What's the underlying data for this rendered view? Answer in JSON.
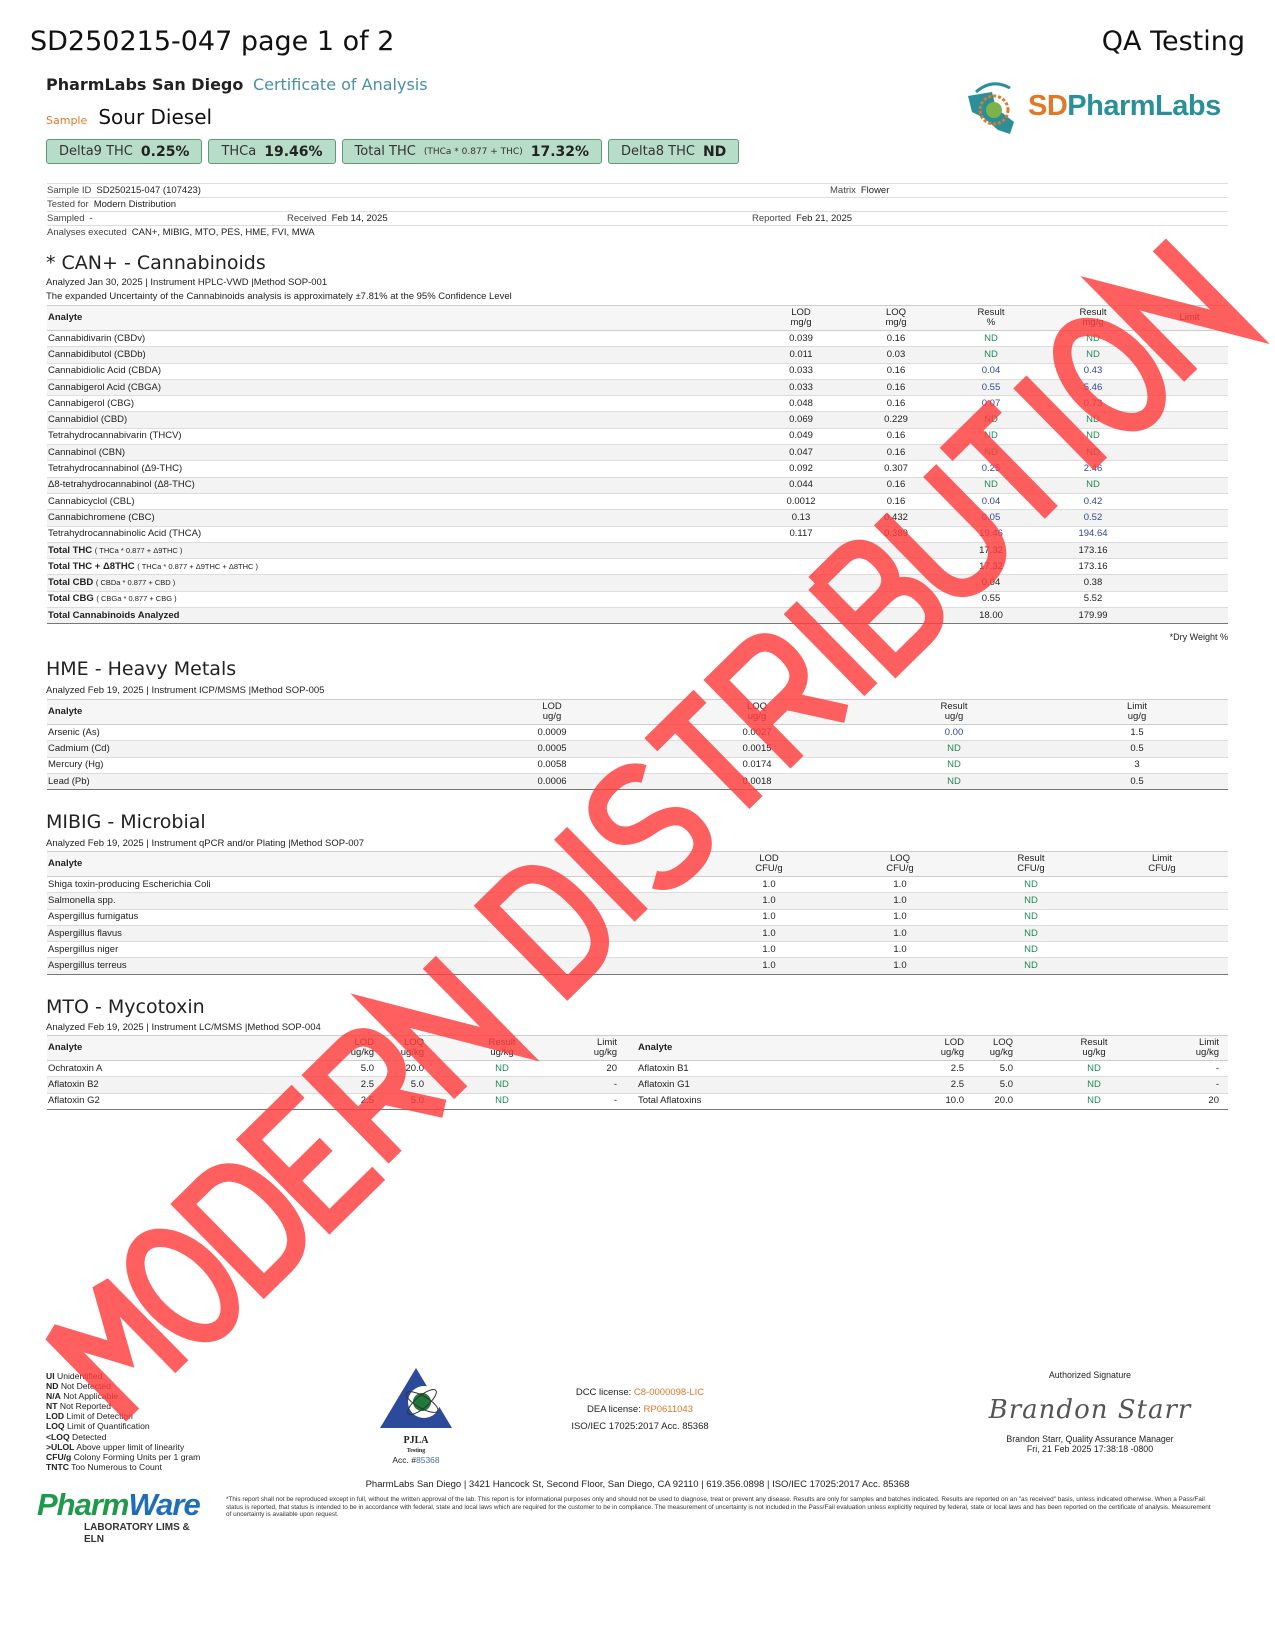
{
  "header": {
    "title": "SD250215-047 page 1 of 2",
    "right": "QA Testing"
  },
  "lab": {
    "name": "PharmLabs San Diego",
    "doc_type": "Certificate of Analysis",
    "logo_text_a": "SD",
    "logo_text_b": "PharmLabs",
    "logo_arc": "PharmLabs"
  },
  "sample": {
    "label": "Sample",
    "name": "Sour Diesel"
  },
  "badges": [
    {
      "label": "Delta9 THC",
      "formula": "",
      "value": "0.25%"
    },
    {
      "label": "THCa",
      "formula": "",
      "value": "19.46%"
    },
    {
      "label": "Total THC",
      "formula": "(THCa * 0.877 + THC)",
      "value": "17.32%"
    },
    {
      "label": "Delta8 THC",
      "formula": "",
      "value": "ND"
    }
  ],
  "info": {
    "sample_id_label": "Sample ID",
    "sample_id": "SD250215-047 (107423)",
    "matrix_label": "Matrix",
    "matrix": "Flower",
    "tested_for_label": "Tested for",
    "tested_for": "Modern Distribution",
    "sampled_label": "Sampled",
    "sampled": "-",
    "received_label": "Received",
    "received": "Feb 14, 2025",
    "reported_label": "Reported",
    "reported": "Feb 21, 2025",
    "analyses_label": "Analyses executed",
    "analyses": "CAN+, MIBIG, MTO, PES, HME, FVI, MWA"
  },
  "cannabinoids": {
    "title": "* CAN+ - Cannabinoids",
    "meta": "Analyzed Jan 30, 2025  |  Instrument HPLC-VWD  |Method SOP-001",
    "note": "The expanded Uncertainty of the Cannabinoids analysis is approximately ±7.81% at the 95% Confidence Level",
    "headers": [
      "Analyte",
      "LOD\nmg/g",
      "LOQ\nmg/g",
      "Result\n%",
      "Result\nmg/g",
      "Limit"
    ],
    "rows": [
      [
        "Cannabidivarin (CBDv)",
        "0.039",
        "0.16",
        "ND",
        "ND",
        ""
      ],
      [
        "Cannabidibutol (CBDb)",
        "0.011",
        "0.03",
        "ND",
        "ND",
        ""
      ],
      [
        "Cannabidiolic Acid (CBDA)",
        "0.033",
        "0.16",
        "0.04",
        "0.43",
        ""
      ],
      [
        "Cannabigerol Acid (CBGA)",
        "0.033",
        "0.16",
        "0.55",
        "5.46",
        ""
      ],
      [
        "Cannabigerol (CBG)",
        "0.048",
        "0.16",
        "0.07",
        "0.73",
        ""
      ],
      [
        "Cannabidiol (CBD)",
        "0.069",
        "0.229",
        "ND",
        "ND",
        ""
      ],
      [
        "Tetrahydrocannabivarin (THCV)",
        "0.049",
        "0.16",
        "ND",
        "ND",
        ""
      ],
      [
        "Cannabinol (CBN)",
        "0.047",
        "0.16",
        "ND",
        "ND",
        ""
      ],
      [
        "Tetrahydrocannabinol (Δ9-THC)",
        "0.092",
        "0.307",
        "0.25",
        "2.46",
        ""
      ],
      [
        "Δ8-tetrahydrocannabinol (Δ8-THC)",
        "0.044",
        "0.16",
        "ND",
        "ND",
        ""
      ],
      [
        "Cannabicyclol (CBL)",
        "0.0012",
        "0.16",
        "0.04",
        "0.42",
        ""
      ],
      [
        "Cannabichromene (CBC)",
        "0.13",
        "0.432",
        "0.05",
        "0.52",
        ""
      ],
      [
        "Tetrahydrocannabinolic Acid (THCA)",
        "0.117",
        "0.389",
        "19.46",
        "194.64",
        ""
      ]
    ],
    "totals": [
      {
        "name": "Total THC",
        "formula": "( THCa * 0.877 + Δ9THC )",
        "result_pct": "17.32",
        "result_mg": "173.16"
      },
      {
        "name": "Total THC + Δ8THC",
        "formula": "( THCa * 0.877 + Δ9THC + Δ8THC )",
        "result_pct": "17.32",
        "result_mg": "173.16"
      },
      {
        "name": "Total CBD",
        "formula": "( CBDa * 0.877 + CBD )",
        "result_pct": "0.04",
        "result_mg": "0.38"
      },
      {
        "name": "Total CBG",
        "formula": "( CBGa * 0.877 + CBG )",
        "result_pct": "0.55",
        "result_mg": "5.52"
      },
      {
        "name": "Total Cannabinoids Analyzed",
        "formula": "",
        "result_pct": "18.00",
        "result_mg": "179.99"
      }
    ],
    "footnote": "*Dry Weight %"
  },
  "metals": {
    "title": "HME - Heavy Metals",
    "meta": "Analyzed Feb 19, 2025  |  Instrument ICP/MSMS  |Method SOP-005",
    "headers": [
      "Analyte",
      "LOD\nug/g",
      "LOQ\nug/g",
      "Result\nug/g",
      "Limit\nug/g"
    ],
    "rows": [
      [
        "Arsenic (As)",
        "0.0009",
        "0.0027",
        "0.00",
        "1.5"
      ],
      [
        "Cadmium (Cd)",
        "0.0005",
        "0.0015",
        "ND",
        "0.5"
      ],
      [
        "Mercury (Hg)",
        "0.0058",
        "0.0174",
        "ND",
        "3"
      ],
      [
        "Lead (Pb)",
        "0.0006",
        "0.0018",
        "ND",
        "0.5"
      ]
    ]
  },
  "microbial": {
    "title": "MIBIG - Microbial",
    "meta": "Analyzed Feb 19, 2025  |  Instrument qPCR and/or Plating  |Method SOP-007",
    "headers": [
      "Analyte",
      "LOD\nCFU/g",
      "LOQ\nCFU/g",
      "Result\nCFU/g",
      "Limit\nCFU/g"
    ],
    "rows": [
      [
        "Shiga toxin-producing Escherichia Coli",
        "1.0",
        "1.0",
        "ND",
        ""
      ],
      [
        "Salmonella spp.",
        "1.0",
        "1.0",
        "ND",
        ""
      ],
      [
        "Aspergillus fumigatus",
        "1.0",
        "1.0",
        "ND",
        ""
      ],
      [
        "Aspergillus flavus",
        "1.0",
        "1.0",
        "ND",
        ""
      ],
      [
        "Aspergillus niger",
        "1.0",
        "1.0",
        "ND",
        ""
      ],
      [
        "Aspergillus terreus",
        "1.0",
        "1.0",
        "ND",
        ""
      ]
    ]
  },
  "mycotoxin": {
    "title": "MTO - Mycotoxin",
    "meta": "Analyzed Feb 19, 2025  |  Instrument LC/MSMS  |Method SOP-004",
    "headers": [
      "Analyte",
      "LOD\nug/kg",
      "LOQ\nug/kg",
      "Result\nug/kg",
      "Limit\nug/kg",
      "Analyte",
      "LOD\nug/kg",
      "LOQ\nug/kg",
      "Result\nug/kg",
      "Limit\nug/kg"
    ],
    "rows": [
      [
        "Ochratoxin A",
        "5.0",
        "20.0",
        "ND",
        "20",
        "Aflatoxin B1",
        "2.5",
        "5.0",
        "ND",
        "-"
      ],
      [
        "Aflatoxin B2",
        "2.5",
        "5.0",
        "ND",
        "-",
        "Aflatoxin G1",
        "2.5",
        "5.0",
        "ND",
        "-"
      ],
      [
        "Aflatoxin G2",
        "2.5",
        "5.0",
        "ND",
        "-",
        "Total Aflatoxins",
        "10.0",
        "20.0",
        "ND",
        "20"
      ]
    ]
  },
  "legend": [
    {
      "abbr": "UI",
      "text": "Unidentified"
    },
    {
      "abbr": "ND",
      "text": "Not Detected"
    },
    {
      "abbr": "N/A",
      "text": "Not Applicable"
    },
    {
      "abbr": "NT",
      "text": "Not Reported"
    },
    {
      "abbr": "LOD",
      "text": "Limit of Detection"
    },
    {
      "abbr": "LOQ",
      "text": "Limit of Quantification"
    },
    {
      "abbr": "<LOQ",
      "text": "Detected"
    },
    {
      "abbr": ">ULOL",
      "text": "Above upper limit of linearity"
    },
    {
      "abbr": "CFU/g",
      "text": "Colony Forming Units per 1 gram"
    },
    {
      "abbr": "TNTC",
      "text": "Too Numerous to Count"
    }
  ],
  "accreditation": {
    "logo_name": "PJLA",
    "logo_sub": "Testing",
    "acc_label": "Acc. #",
    "acc_num": "85368"
  },
  "licenses": {
    "dcc_label": "DCC license:",
    "dcc": "C8-0000098-LIC",
    "dea_label": "DEA license:",
    "dea": "RP0611043",
    "iso": "ISO/IEC 17025:2017 Acc. 85368"
  },
  "signature": {
    "label": "Authorized Signature",
    "signature_text": "Brandon Starr",
    "name_title": "Brandon Starr, Quality Assurance Manager",
    "datetime": "Fri, 21 Feb 2025 17:38:18 -0800"
  },
  "address": "PharmLabs San Diego | 3421 Hancock St, Second Floor, San Diego, CA 92110 | 619.356.0898 | ISO/IEC 17025:2017 Acc. 85368",
  "disclaimer": "*This report shall not be reproduced except in full, without the written approval of the lab. This report is for informational purposes only and should not be used to diagnose, treat or prevent any disease. Results are only for samples and batches indicated. Results are reported on an \"as received\" basis, unless indicated otherwise. When a Pass/Fail status is reported, that status is intended to be in accordance with federal, state and local laws which are required for the customer to be in compliance. The measurement of uncertainty is not included in the Pass/Fail evaluation unless explicitly required by federal, state or local laws and has been reported on the certificate of analysis. Measurement of uncertainty is available upon request.",
  "pharmware": {
    "a": "Pharm",
    "b": "Ware",
    "sub": "LABORATORY LIMS & ELN"
  },
  "watermark": "MODERN DISTRIBUTION",
  "colors": {
    "nd": "#1f8a5a",
    "result": "#3344a0",
    "badge": "#b7dcc8",
    "accent_orange": "#e0782a",
    "accent_teal": "#4a8fa8",
    "watermark": "#ff3d3d"
  }
}
